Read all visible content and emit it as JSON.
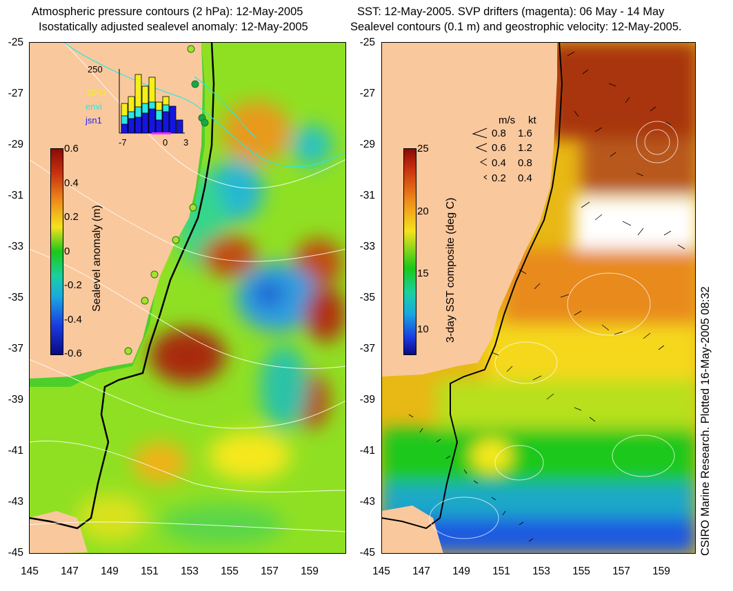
{
  "left_panel": {
    "title_line1": "Atmospheric pressure contours (2 hPa): 12-May-2005",
    "title_line2": "Isostatically adjusted sealevel anomaly: 12-May-2005",
    "colorbar": {
      "label": "Sealevel anomaly (m)",
      "ticks": [
        "0.6",
        "0.4",
        "0.2",
        "0",
        "-0.2",
        "-0.4",
        "-0.6"
      ]
    },
    "inset": {
      "ymax_label": "250",
      "x_ticks": [
        "-7",
        "0",
        "3"
      ],
      "legend": [
        {
          "label": "GFO",
          "color": "#f5ef1a"
        },
        {
          "label": "envi",
          "color": "#27e7e7"
        },
        {
          "label": "jsn1",
          "color": "#1515e0"
        }
      ]
    }
  },
  "right_panel": {
    "title_line1": "SST: 12-May-2005. SVP drifters (magenta): 06 May - 14 May",
    "title_line2": "Sealevel contours (0.1 m) and geostrophic velocity: 12-May-2005.",
    "colorbar": {
      "label": "3-day SST composite (deg C)",
      "ticks": [
        "25",
        "20",
        "15",
        "10"
      ]
    },
    "velocity_key": {
      "header_ms": "m/s",
      "header_kt": "kt",
      "rows": [
        {
          "ms": "0.8",
          "kt": "1.6"
        },
        {
          "ms": "0.6",
          "kt": "1.2"
        },
        {
          "ms": "0.4",
          "kt": "0.8"
        },
        {
          "ms": "0.2",
          "kt": "0.4"
        }
      ]
    }
  },
  "axes": {
    "lat_ticks": [
      "-25",
      "-27",
      "-29",
      "-31",
      "-33",
      "-35",
      "-37",
      "-39",
      "-41",
      "-43",
      "-45"
    ],
    "lon_ticks": [
      "145",
      "147",
      "149",
      "151",
      "153",
      "155",
      "157",
      "159"
    ]
  },
  "credit": "CSIRO Marine Research. Plotted 16-May-2005 08:32",
  "colors": {
    "land": "#fac89d",
    "shelf_green": "#19c519"
  }
}
